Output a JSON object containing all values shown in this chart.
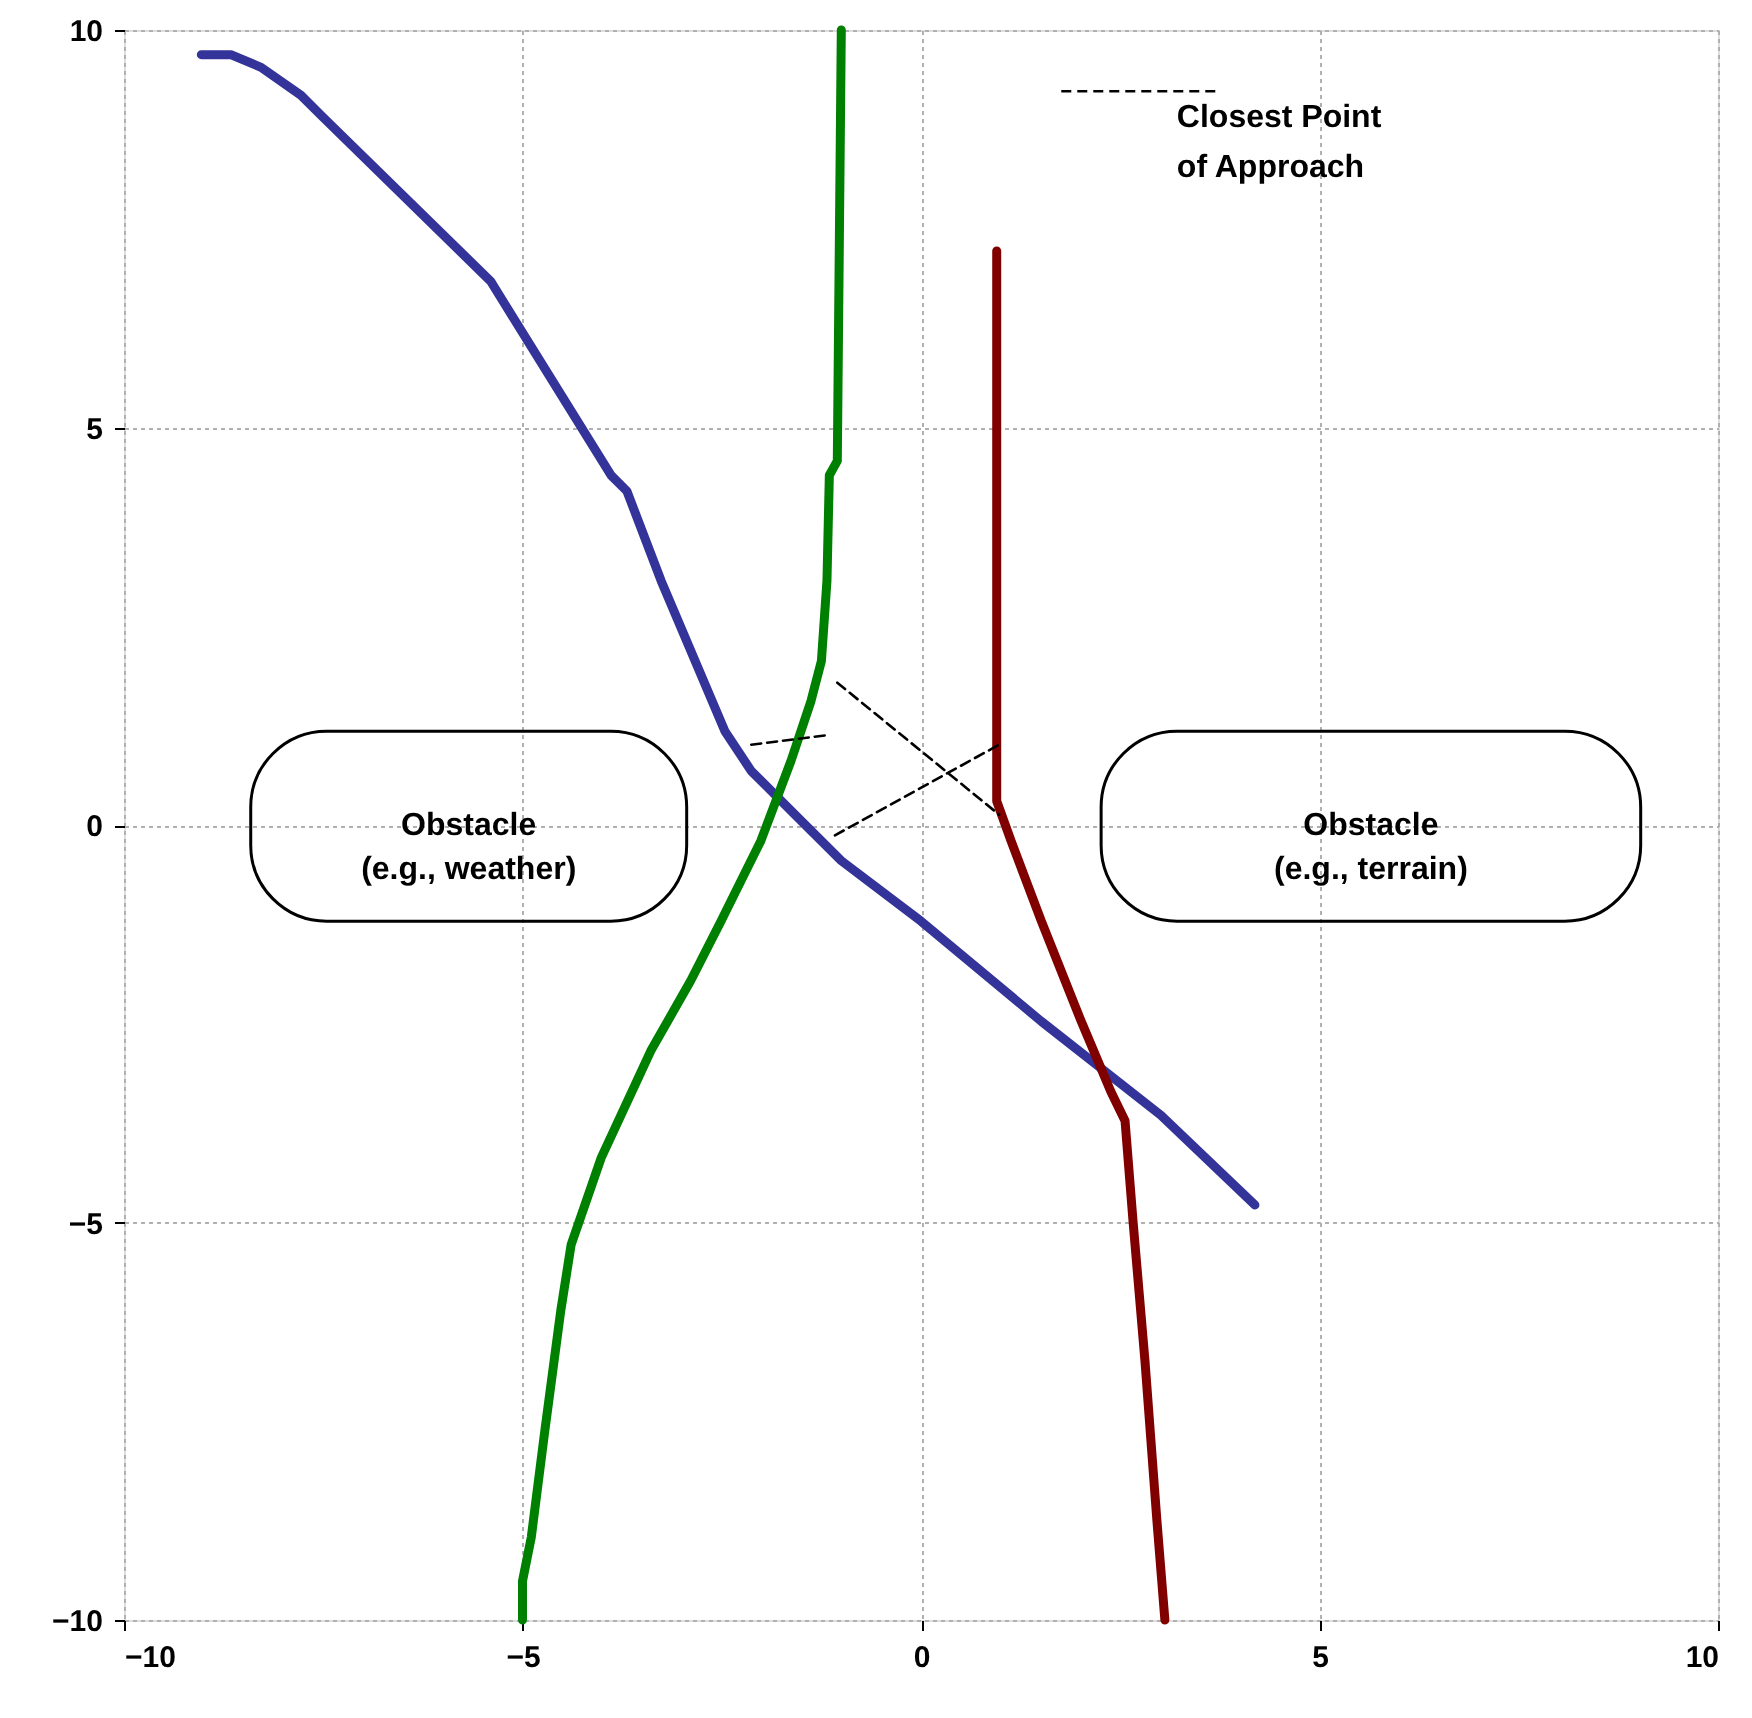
{
  "chart_data": {
    "type": "line",
    "xlim": [
      -10,
      10
    ],
    "ylim": [
      -10,
      10
    ],
    "xticks": [
      -10,
      -5,
      0,
      5,
      10
    ],
    "yticks": [
      -10,
      -5,
      0,
      5,
      10
    ],
    "grid": true,
    "legend": "top right",
    "annotations": [
      "Obstacle (e.g., weather)",
      "Obstacle (e.g., terrain)"
    ],
    "series": [
      {
        "color": "#333399",
        "line_style": "solid",
        "x": [
          -9.03,
          -8.66,
          -8.28,
          -7.78,
          -7.53,
          -5.4,
          -3.89,
          -3.69,
          -3.26,
          -2.46,
          -2.13,
          -1.63,
          -1.0,
          0,
          1.51,
          3.01,
          4.19
        ],
        "values": [
          9.69,
          9.69,
          9.53,
          9.18,
          8.93,
          6.84,
          4.4,
          4.2,
          3.07,
          1.18,
          0.68,
          0.18,
          -0.45,
          -1.21,
          -2.47,
          -3.65,
          -4.78
        ]
      },
      {
        "color": "#008000",
        "line_style": "solid",
        "x": [
          -5,
          -5,
          -4.89,
          -4.72,
          -4.52,
          -4.39,
          -4.01,
          -3.39,
          -2.89,
          -2.51,
          -2.01,
          -1.63,
          -1.38,
          -1.25,
          -1.18,
          -1.15,
          -1.05,
          -1.0
        ],
        "values": [
          -10,
          -9.51,
          -8.96,
          -7.62,
          -6.11,
          -5.28,
          -4.18,
          -2.84,
          -1.96,
          -1.21,
          -0.2,
          0.81,
          1.56,
          2.06,
          3.07,
          4.4,
          4.58,
          10
        ]
      },
      {
        "color": "#800000",
        "line_style": "solid",
        "x": [
          3.06,
          2.96,
          2.81,
          2.66,
          2.56,
          2.38,
          2.01,
          1.51,
          1.13,
          0.95,
          0.95
        ],
        "values": [
          -10,
          -8.75,
          -6.74,
          -4.98,
          -3.72,
          -3.35,
          -2.47,
          -1.21,
          -0.2,
          0.3,
          7.22
        ]
      },
      {
        "name": "Closest Point of Approach",
        "color": "#000000",
        "line_style": "dashed",
        "x": [
          -2.13,
          -1.18,
          null,
          -1.05,
          0.98,
          null,
          -1.08,
          0.98
        ],
        "values": [
          1.01,
          1.13,
          null,
          1.79,
          0.13,
          null,
          -0.13,
          1.01
        ]
      }
    ]
  }
}
